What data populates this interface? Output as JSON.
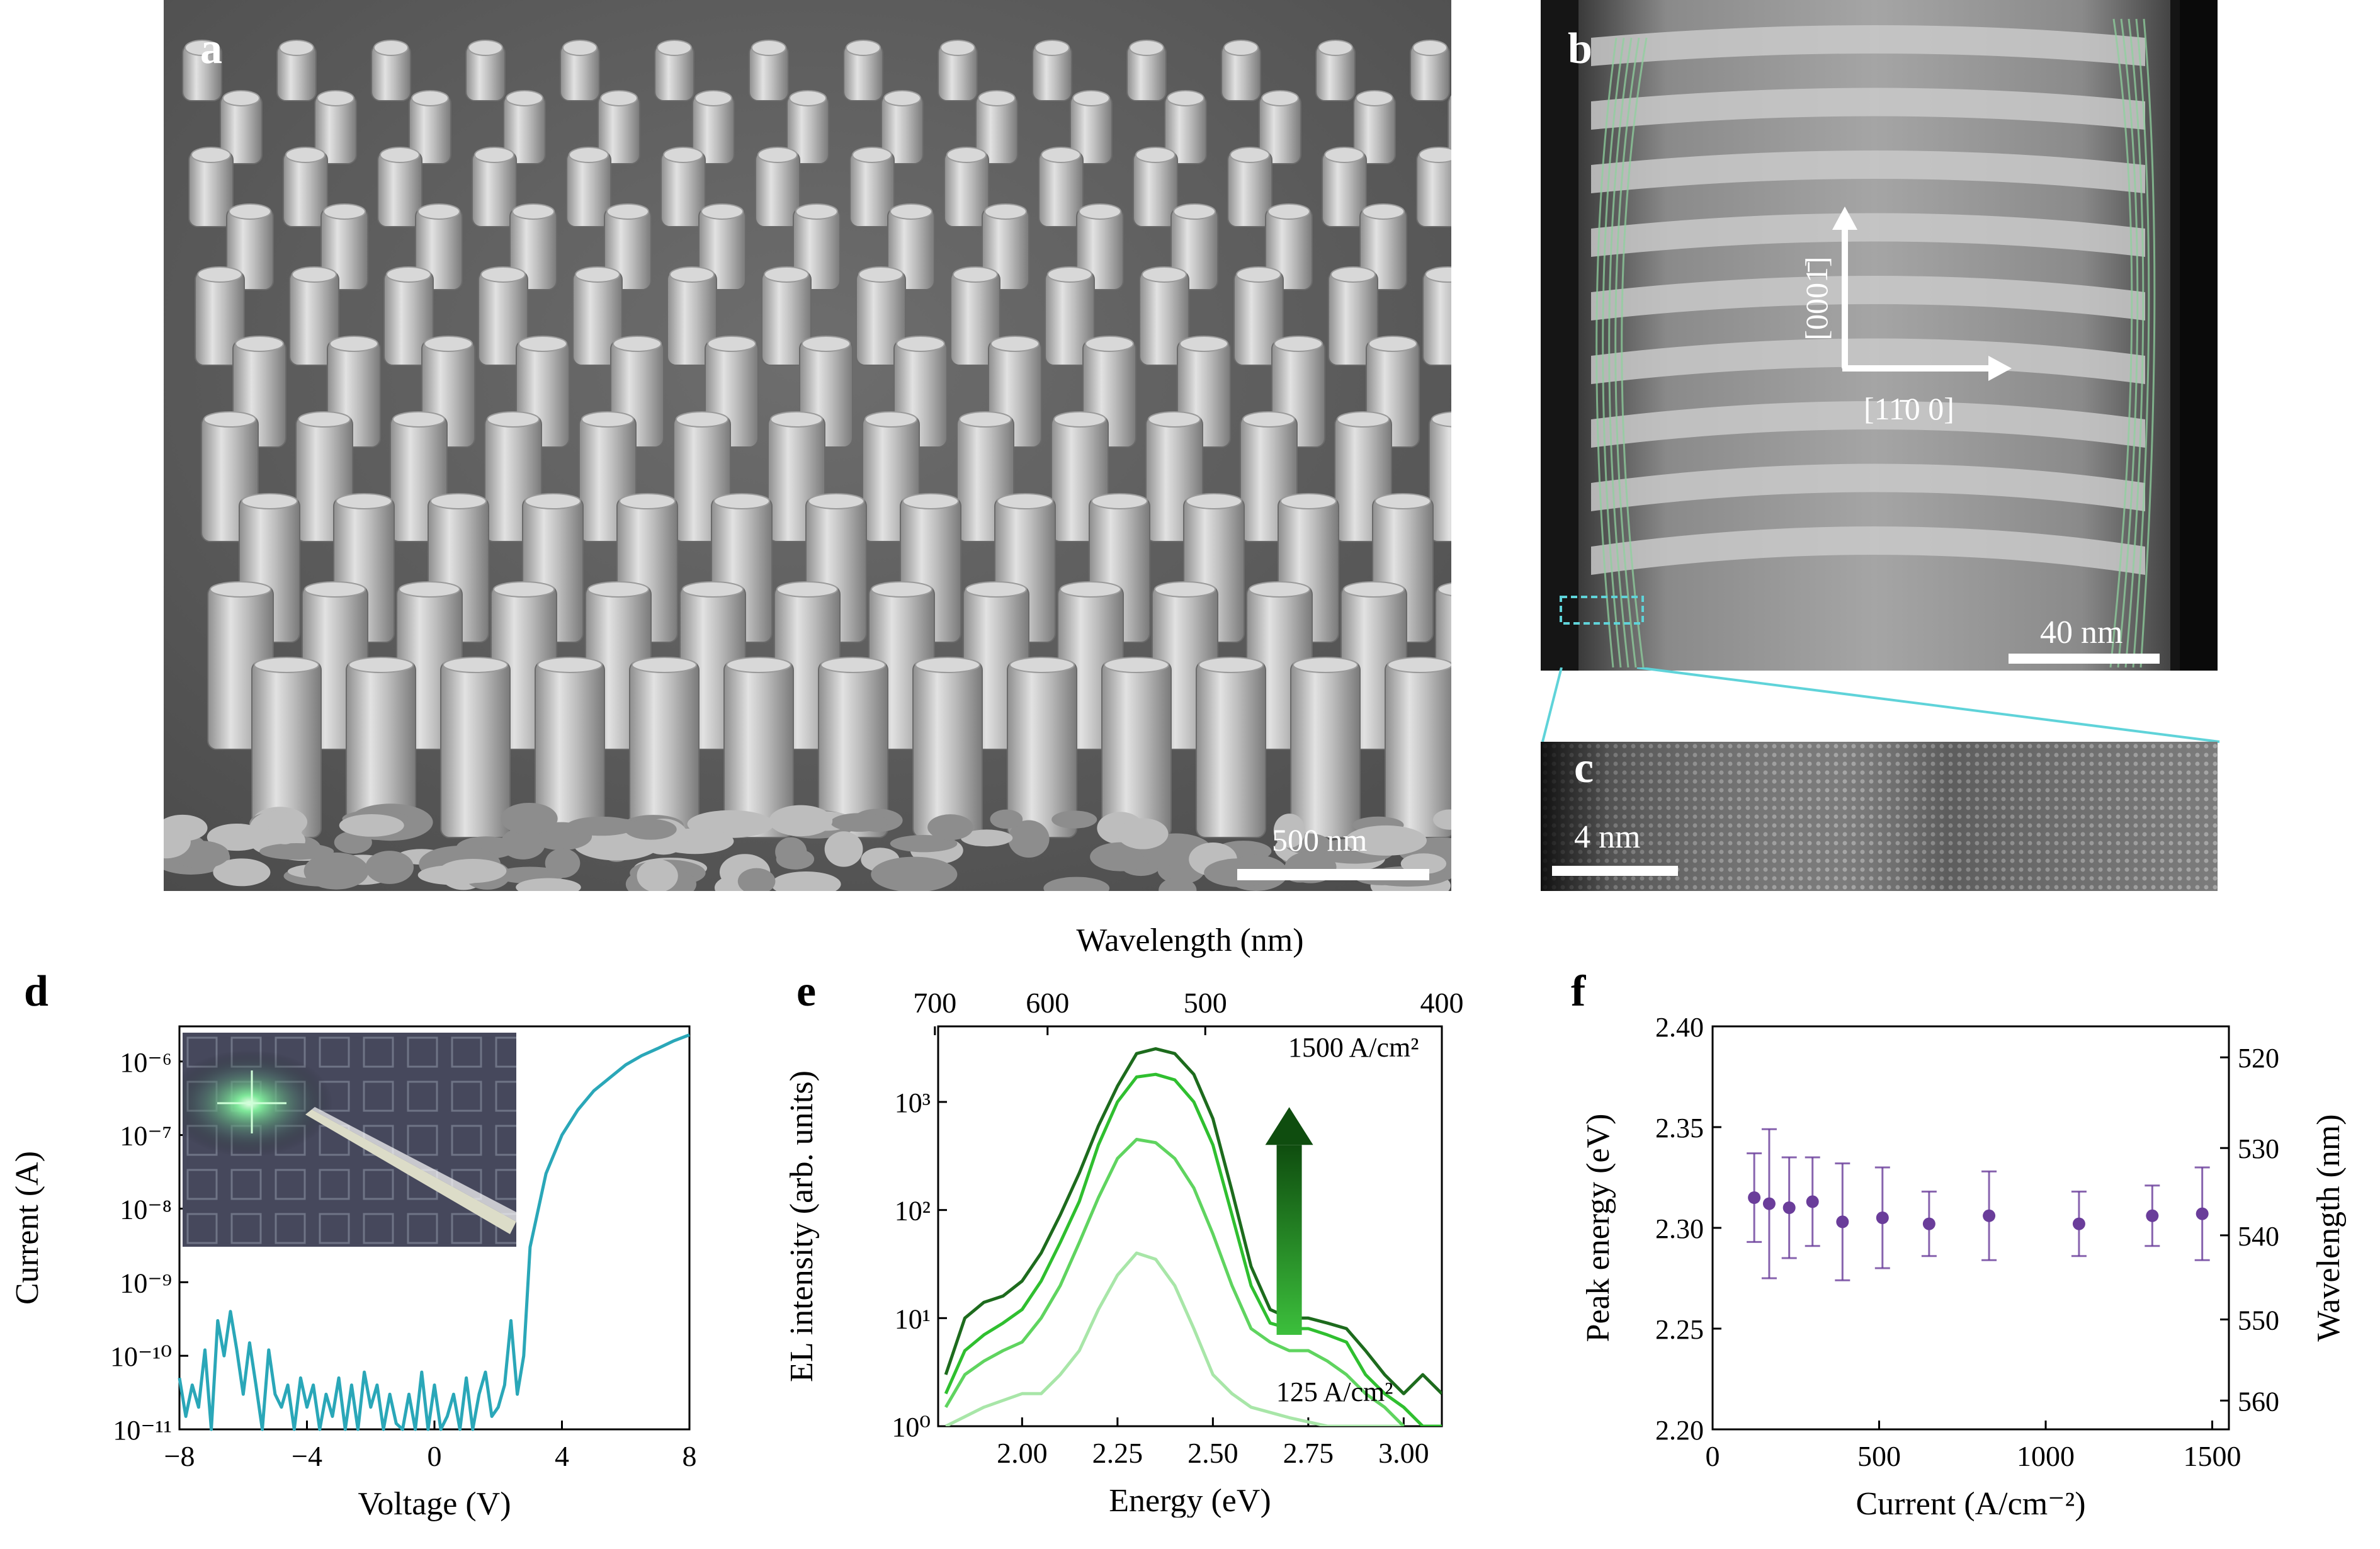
{
  "panels": {
    "a": {
      "letter": "a",
      "scalebar": "500 nm"
    },
    "b": {
      "letter": "b",
      "scalebar": "40 nm",
      "axis_vertical": "[0001̄]",
      "axis_horizontal": "[11̄0 0]"
    },
    "c": {
      "letter": "c",
      "scalebar": "4 nm"
    },
    "d": {
      "letter": "d"
    },
    "e": {
      "letter": "e"
    },
    "f": {
      "letter": "f"
    }
  },
  "chart_data": [
    {
      "panel": "d",
      "type": "line",
      "xlabel": "Voltage (V)",
      "ylabel": "Current (A)",
      "xlim": [
        -8,
        8
      ],
      "ylim": [
        1e-11,
        3e-06
      ],
      "y_scale": "log",
      "x_ticks": [
        "−8",
        "−4",
        "0",
        "4",
        "8"
      ],
      "y_ticks": [
        "10⁻¹¹",
        "10⁻¹⁰",
        "10⁻⁹",
        "10⁻⁸",
        "10⁻⁷",
        "10⁻⁶"
      ],
      "color": "#2aa7b8",
      "series": [
        {
          "x": [
            -8.0,
            -7.8,
            -7.6,
            -7.4,
            -7.2,
            -7.0,
            -6.8,
            -6.6,
            -6.4,
            -6.2,
            -6.0,
            -5.8,
            -5.6,
            -5.4,
            -5.2,
            -5.0,
            -4.8,
            -4.6,
            -4.4,
            -4.2,
            -4.0,
            -3.8,
            -3.6,
            -3.4,
            -3.2,
            -3.0,
            -2.8,
            -2.6,
            -2.4,
            -2.2,
            -2.0,
            -1.8,
            -1.6,
            -1.4,
            -1.2,
            -1.0,
            -0.8,
            -0.6,
            -0.4,
            -0.2,
            0.0,
            0.2,
            0.4,
            0.6,
            0.8,
            1.0,
            1.2,
            1.4,
            1.6,
            1.8,
            2.0,
            2.2,
            2.4,
            2.6,
            2.8,
            3.0,
            3.5,
            4.0,
            4.5,
            5.0,
            5.5,
            6.0,
            6.5,
            7.0,
            7.5,
            8.0
          ],
          "y": [
            5e-11,
            1.5e-11,
            4e-11,
            2e-11,
            1.2e-10,
            1e-11,
            3e-10,
            1e-10,
            4e-10,
            1.2e-10,
            3e-11,
            1.5e-10,
            4e-11,
            1e-11,
            1.2e-10,
            3e-11,
            2e-11,
            4e-11,
            1e-11,
            5e-11,
            2e-11,
            4e-11,
            1e-11,
            3e-11,
            1.5e-11,
            5e-11,
            1e-11,
            4e-11,
            1e-11,
            6e-11,
            2e-11,
            4e-11,
            1e-11,
            3e-11,
            1.2e-11,
            1e-11,
            3e-11,
            1e-11,
            6e-11,
            1e-11,
            4e-11,
            1e-11,
            1.5e-11,
            3e-11,
            1e-11,
            5e-11,
            1e-11,
            3e-11,
            6e-11,
            1.5e-11,
            2e-11,
            4e-11,
            3e-10,
            3e-11,
            1e-10,
            3e-09,
            3e-08,
            1e-07,
            2.2e-07,
            4e-07,
            6e-07,
            9e-07,
            1.2e-06,
            1.5e-06,
            1.9e-06,
            2.3e-06
          ]
        }
      ]
    },
    {
      "panel": "e",
      "type": "line",
      "xlabel": "Energy (eV)",
      "ylabel": "EL intensity (arb. units)",
      "x2label": "Wavelength (nm)",
      "xlim": [
        1.78,
        3.1
      ],
      "ylim": [
        1,
        5000
      ],
      "y_scale": "log",
      "x_ticks": [
        "2.00",
        "2.25",
        "2.50",
        "2.75",
        "3.00"
      ],
      "x2_ticks": [
        "700",
        "600",
        "500",
        "400"
      ],
      "y_ticks": [
        "10⁰",
        "10¹",
        "10²",
        "10³"
      ],
      "annotations": [
        "1500 A/cm²",
        "125 A/cm²"
      ],
      "series": [
        {
          "color": "#1d6b1d",
          "x": [
            1.8,
            1.85,
            1.9,
            1.95,
            2.0,
            2.05,
            2.1,
            2.15,
            2.2,
            2.25,
            2.3,
            2.35,
            2.4,
            2.45,
            2.5,
            2.55,
            2.6,
            2.65,
            2.7,
            2.75,
            2.8,
            2.85,
            2.9,
            2.95,
            3.0,
            3.05,
            3.1
          ],
          "y": [
            3,
            10,
            14,
            16,
            22,
            40,
            90,
            220,
            600,
            1400,
            2800,
            3100,
            2800,
            1800,
            700,
            150,
            30,
            12,
            10,
            10,
            9,
            8,
            5,
            3,
            2,
            3,
            2
          ]
        },
        {
          "color": "#2fbf2f",
          "x": [
            1.8,
            1.85,
            1.9,
            1.95,
            2.0,
            2.05,
            2.1,
            2.15,
            2.2,
            2.25,
            2.3,
            2.35,
            2.4,
            2.45,
            2.5,
            2.55,
            2.6,
            2.65,
            2.7,
            2.75,
            2.8,
            2.85,
            2.9,
            2.95,
            3.0,
            3.05,
            3.1
          ],
          "y": [
            2,
            5,
            7,
            9,
            12,
            22,
            50,
            120,
            400,
            1000,
            1700,
            1800,
            1600,
            1000,
            400,
            90,
            20,
            9,
            8,
            8,
            7,
            6,
            3,
            2,
            1.5,
            1,
            1
          ]
        },
        {
          "color": "#5fd45f",
          "x": [
            1.8,
            1.85,
            1.9,
            1.95,
            2.0,
            2.05,
            2.1,
            2.15,
            2.2,
            2.25,
            2.3,
            2.35,
            2.4,
            2.45,
            2.5,
            2.55,
            2.6,
            2.65,
            2.7,
            2.75,
            2.8,
            2.85,
            2.9,
            2.95,
            3.0
          ],
          "y": [
            1.5,
            3,
            4,
            5,
            6,
            10,
            20,
            50,
            130,
            300,
            450,
            420,
            300,
            160,
            60,
            20,
            8,
            6,
            5,
            5,
            4,
            3,
            2,
            1.5,
            1
          ]
        },
        {
          "color": "#a8e6a8",
          "x": [
            1.8,
            1.9,
            2.0,
            2.05,
            2.1,
            2.15,
            2.2,
            2.25,
            2.3,
            2.35,
            2.4,
            2.45,
            2.5,
            2.55,
            2.6,
            2.7,
            2.8,
            2.9,
            3.0
          ],
          "y": [
            1,
            1.5,
            2,
            2,
            3,
            5,
            12,
            25,
            40,
            35,
            20,
            8,
            3,
            2,
            1.5,
            1.2,
            1,
            1,
            1
          ]
        }
      ]
    },
    {
      "panel": "f",
      "type": "scatter",
      "xlabel": "Current (A/cm⁻²)",
      "ylabel": "Peak energy (eV)",
      "y2label": "Wavelength (nm)",
      "xlim": [
        0,
        1550
      ],
      "ylim": [
        2.2,
        2.4
      ],
      "x_ticks": [
        "0",
        "500",
        "1000",
        "1500"
      ],
      "y_ticks": [
        "2.20",
        "2.25",
        "2.30",
        "2.35",
        "2.40"
      ],
      "y2_ticks": [
        "520",
        "530",
        "540",
        "550",
        "560"
      ],
      "color": "#6a3d9a",
      "series": [
        {
          "x": [
            125,
            170,
            230,
            300,
            390,
            510,
            650,
            830,
            1100,
            1320,
            1470
          ],
          "y": [
            2.315,
            2.312,
            2.31,
            2.313,
            2.303,
            2.305,
            2.302,
            2.306,
            2.302,
            2.306,
            2.307
          ],
          "err": [
            0.022,
            0.037,
            0.025,
            0.022,
            0.029,
            0.025,
            0.016,
            0.022,
            0.016,
            0.015,
            0.023
          ]
        }
      ]
    }
  ]
}
